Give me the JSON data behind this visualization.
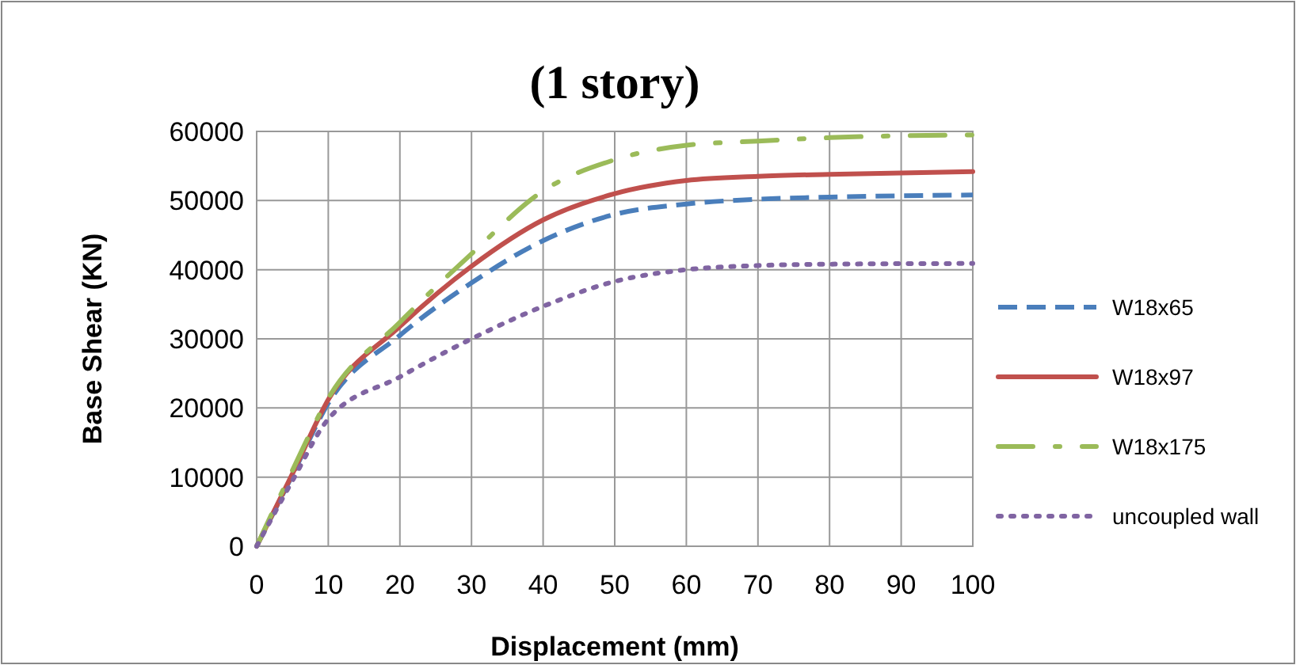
{
  "chart_data": {
    "type": "line",
    "title": "(1 story)",
    "xlabel": "Displacement (mm)",
    "ylabel": "Base Shear (KN)",
    "x": [
      0,
      5,
      10,
      20,
      30,
      40,
      50,
      60,
      70,
      80,
      100
    ],
    "series": [
      {
        "name": "W18x65",
        "color": "#4a7ebb",
        "line_style": "dashed",
        "values": [
          0,
          10300,
          20700,
          30500,
          38100,
          44200,
          48000,
          49500,
          50200,
          50500,
          50800
        ]
      },
      {
        "name": "W18x97",
        "color": "#c0504d",
        "line_style": "solid",
        "values": [
          0,
          10500,
          21200,
          31800,
          40500,
          47200,
          51000,
          52900,
          53500,
          53800,
          54200
        ]
      },
      {
        "name": "W18x175",
        "color": "#9bbb59",
        "line_style": "dashdot",
        "values": [
          0,
          11000,
          21400,
          32400,
          42300,
          51400,
          55900,
          58000,
          58600,
          59100,
          59500
        ]
      },
      {
        "name": "uncoupled wall",
        "color": "#8064a2",
        "line_style": "dotted",
        "values": [
          0,
          9500,
          18400,
          24500,
          30000,
          34700,
          38300,
          40000,
          40600,
          40800,
          40900
        ]
      }
    ],
    "xlim": [
      0,
      100
    ],
    "xticks": [
      0,
      10,
      20,
      30,
      40,
      50,
      60,
      70,
      80,
      90,
      100
    ],
    "ylim": [
      0,
      60000
    ],
    "yticks": [
      0,
      10000,
      20000,
      30000,
      40000,
      50000,
      60000
    ],
    "grid": true,
    "legend": "right",
    "marker": "none"
  }
}
